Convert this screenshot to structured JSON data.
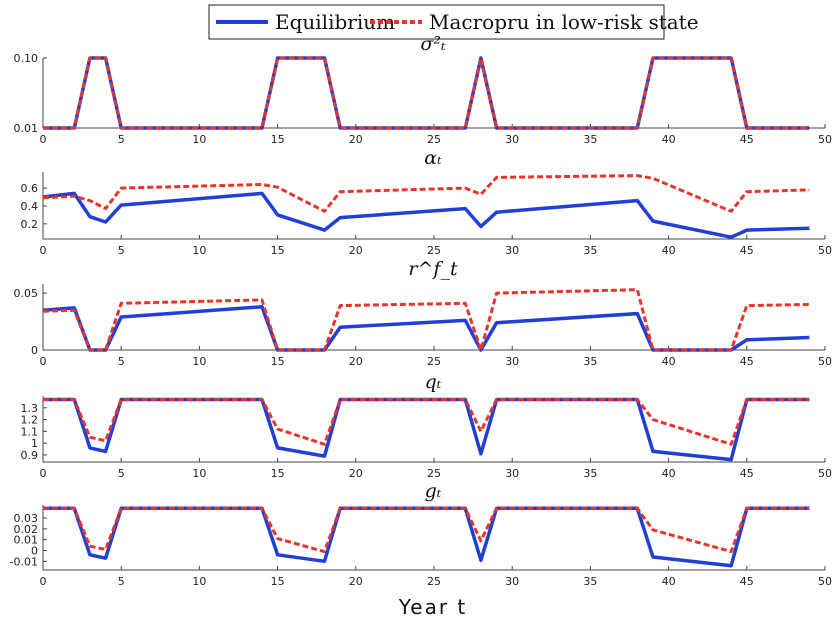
{
  "legend": {
    "entries": [
      {
        "label": "Equilibrium",
        "color": "#1f3fd6",
        "style": "solid"
      },
      {
        "label": "Macropru in low-risk state",
        "color": "#e8352b",
        "style": "dashed"
      }
    ]
  },
  "xlabel": "Year t",
  "chart_data": [
    {
      "type": "line",
      "title": "σ²ₜ",
      "xlim": [
        0,
        50
      ],
      "x_ticks": [
        "0",
        "5",
        "10",
        "15",
        "20",
        "25",
        "30",
        "35",
        "40",
        "45",
        "50"
      ],
      "ylim": [
        0.01,
        0.1
      ],
      "y_ticks": [
        {
          "v": 0.01,
          "label": "0.01"
        },
        {
          "v": 0.1,
          "label": "0.10"
        }
      ],
      "series": [
        {
          "name": "Equilibrium",
          "x": [
            0,
            1,
            2,
            3,
            4,
            5,
            14,
            15,
            18,
            19,
            27,
            28,
            29,
            38,
            39,
            44,
            45,
            49
          ],
          "values": [
            0.01,
            0.01,
            0.01,
            0.1,
            0.1,
            0.01,
            0.01,
            0.1,
            0.1,
            0.01,
            0.01,
            0.1,
            0.01,
            0.01,
            0.1,
            0.1,
            0.01,
            0.01
          ]
        },
        {
          "name": "Macropru in low-risk state",
          "x": [
            0,
            1,
            2,
            3,
            4,
            5,
            14,
            15,
            18,
            19,
            27,
            28,
            29,
            38,
            39,
            44,
            45,
            49
          ],
          "values": [
            0.01,
            0.01,
            0.01,
            0.1,
            0.1,
            0.01,
            0.01,
            0.1,
            0.1,
            0.01,
            0.01,
            0.1,
            0.01,
            0.01,
            0.1,
            0.1,
            0.01,
            0.01
          ]
        }
      ]
    },
    {
      "type": "line",
      "title": "αₜ",
      "xlim": [
        0,
        50
      ],
      "x_ticks": [
        "0",
        "5",
        "10",
        "15",
        "20",
        "25",
        "30",
        "35",
        "40",
        "45",
        "50"
      ],
      "ylim": [
        0.03,
        0.78
      ],
      "y_ticks": [
        {
          "v": 0.2,
          "label": "0.2"
        },
        {
          "v": 0.4,
          "label": "0.4"
        },
        {
          "v": 0.6,
          "label": "0.6"
        }
      ],
      "series": [
        {
          "name": "Equilibrium",
          "x": [
            0,
            2,
            3,
            4,
            5,
            14,
            15,
            18,
            19,
            27,
            28,
            29,
            38,
            39,
            44,
            45,
            49
          ],
          "values": [
            0.5,
            0.54,
            0.28,
            0.22,
            0.41,
            0.54,
            0.3,
            0.13,
            0.27,
            0.37,
            0.17,
            0.33,
            0.46,
            0.23,
            0.05,
            0.13,
            0.15
          ]
        },
        {
          "name": "Macropru in low-risk state",
          "x": [
            0,
            2,
            3,
            4,
            5,
            14,
            15,
            18,
            19,
            27,
            28,
            29,
            38,
            39,
            44,
            45,
            49
          ],
          "values": [
            0.49,
            0.51,
            0.46,
            0.37,
            0.6,
            0.64,
            0.61,
            0.34,
            0.56,
            0.6,
            0.53,
            0.72,
            0.74,
            0.71,
            0.34,
            0.56,
            0.58
          ]
        }
      ]
    },
    {
      "type": "line",
      "title": "r^f_t",
      "xlim": [
        0,
        50
      ],
      "x_ticks": [
        "0",
        "5",
        "10",
        "15",
        "20",
        "25",
        "30",
        "35",
        "40",
        "45",
        "50"
      ],
      "ylim": [
        0,
        0.058
      ],
      "y_ticks": [
        {
          "v": 0,
          "label": "0"
        },
        {
          "v": 0.05,
          "label": "0.05"
        }
      ],
      "series": [
        {
          "name": "Equilibrium",
          "x": [
            0,
            2,
            3,
            4,
            5,
            14,
            15,
            18,
            19,
            27,
            28,
            29,
            38,
            39,
            44,
            45,
            49
          ],
          "values": [
            0.035,
            0.037,
            0,
            0,
            0.029,
            0.038,
            0,
            0,
            0.02,
            0.026,
            0,
            0.024,
            0.032,
            0,
            0,
            0.009,
            0.011
          ]
        },
        {
          "name": "Macropru in low-risk state",
          "x": [
            0,
            2,
            3,
            4,
            5,
            14,
            15,
            18,
            19,
            27,
            28,
            29,
            38,
            39,
            44,
            45,
            49
          ],
          "values": [
            0.034,
            0.035,
            0,
            0,
            0.041,
            0.044,
            0,
            0,
            0.039,
            0.041,
            0,
            0.05,
            0.053,
            0,
            0,
            0.039,
            0.04
          ]
        }
      ]
    },
    {
      "type": "line",
      "title": "qₜ",
      "xlim": [
        0,
        50
      ],
      "x_ticks": [
        "0",
        "5",
        "10",
        "15",
        "20",
        "25",
        "30",
        "35",
        "40",
        "45",
        "50"
      ],
      "ylim": [
        0.84,
        1.4
      ],
      "y_ticks": [
        {
          "v": 0.9,
          "label": "0.9"
        },
        {
          "v": 1.0,
          "label": "1"
        },
        {
          "v": 1.1,
          "label": "1.1"
        },
        {
          "v": 1.2,
          "label": "1.2"
        },
        {
          "v": 1.3,
          "label": "1.3"
        }
      ],
      "series": [
        {
          "name": "Equilibrium",
          "x": [
            0,
            2,
            3,
            4,
            5,
            14,
            15,
            18,
            19,
            27,
            28,
            29,
            38,
            39,
            44,
            45,
            49
          ],
          "values": [
            1.37,
            1.37,
            0.96,
            0.93,
            1.37,
            1.37,
            0.96,
            0.89,
            1.37,
            1.37,
            0.91,
            1.37,
            1.37,
            0.93,
            0.86,
            1.37,
            1.37
          ]
        },
        {
          "name": "Macropru in low-risk state",
          "x": [
            0,
            2,
            3,
            4,
            5,
            14,
            15,
            18,
            19,
            27,
            28,
            29,
            38,
            39,
            44,
            45,
            49
          ],
          "values": [
            1.37,
            1.37,
            1.05,
            1.02,
            1.37,
            1.37,
            1.12,
            0.99,
            1.37,
            1.37,
            1.1,
            1.37,
            1.37,
            1.2,
            0.99,
            1.37,
            1.37
          ]
        }
      ]
    },
    {
      "type": "line",
      "title": "gₜ",
      "xlim": [
        0,
        50
      ],
      "x_ticks": [
        "0",
        "5",
        "10",
        "15",
        "20",
        "25",
        "30",
        "35",
        "40",
        "45",
        "50"
      ],
      "ylim": [
        -0.018,
        0.042
      ],
      "y_ticks": [
        {
          "v": -0.01,
          "label": "-0.01"
        },
        {
          "v": 0,
          "label": "0"
        },
        {
          "v": 0.01,
          "label": "0.01"
        },
        {
          "v": 0.02,
          "label": "0.02"
        },
        {
          "v": 0.03,
          "label": "0.03"
        }
      ],
      "series": [
        {
          "name": "Equilibrium",
          "x": [
            0,
            2,
            3,
            4,
            5,
            14,
            15,
            18,
            19,
            27,
            28,
            29,
            38,
            39,
            44,
            45,
            49
          ],
          "values": [
            0.039,
            0.039,
            -0.004,
            -0.007,
            0.039,
            0.039,
            -0.004,
            -0.01,
            0.039,
            0.039,
            -0.009,
            0.039,
            0.039,
            -0.006,
            -0.014,
            0.039,
            0.039
          ]
        },
        {
          "name": "Macropru in low-risk state",
          "x": [
            0,
            2,
            3,
            4,
            5,
            14,
            15,
            18,
            19,
            27,
            28,
            29,
            38,
            39,
            44,
            45,
            49
          ],
          "values": [
            0.039,
            0.039,
            0.004,
            0.001,
            0.039,
            0.039,
            0.011,
            -0.001,
            0.039,
            0.039,
            0.009,
            0.039,
            0.039,
            0.019,
            -0.001,
            0.039,
            0.039
          ]
        }
      ]
    }
  ]
}
